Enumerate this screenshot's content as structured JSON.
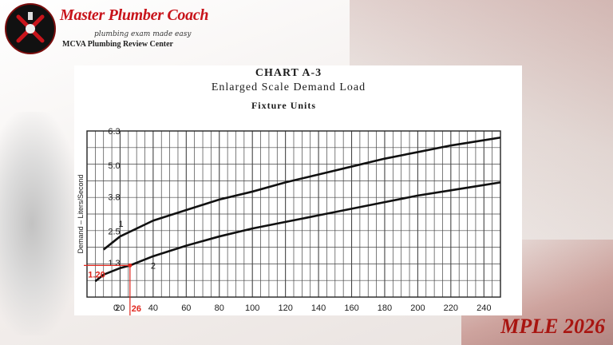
{
  "brand": {
    "title": "Master Plumber Coach",
    "tagline": "plumbing exam made easy",
    "subtitle": "MCVA Plumbing Review Center"
  },
  "footer": {
    "badge": "MPLE 2026"
  },
  "colors": {
    "brand_red": "#c8141b",
    "annotation_red": "#e0261d",
    "ink": "#1c1c1c"
  },
  "chart_data": {
    "type": "line",
    "title": "CHART A-3",
    "subtitle": "Enlarged Scale Demand Load",
    "xlabel": "Fixture Units",
    "ylabel": "Demand – Liters/Second",
    "xlim": [
      0,
      250
    ],
    "ylim": [
      0,
      6.3
    ],
    "x_ticks": [
      "0",
      "20",
      "40",
      "60",
      "80",
      "100",
      "120",
      "140",
      "160",
      "180",
      "200",
      "220",
      "240"
    ],
    "y_ticks": [
      "1.3",
      "2.5",
      "3.8",
      "5.0",
      "6.3"
    ],
    "grid": true,
    "series": [
      {
        "name": "1",
        "x": [
          10,
          20,
          40,
          60,
          80,
          100,
          120,
          140,
          160,
          180,
          200,
          220,
          240,
          250
        ],
        "values": [
          1.8,
          2.3,
          2.9,
          3.3,
          3.7,
          4.0,
          4.35,
          4.65,
          4.95,
          5.25,
          5.5,
          5.75,
          5.95,
          6.05
        ]
      },
      {
        "name": "2",
        "x": [
          5,
          10,
          20,
          26,
          40,
          60,
          80,
          100,
          120,
          140,
          160,
          180,
          200,
          220,
          240,
          250
        ],
        "values": [
          0.6,
          0.85,
          1.1,
          1.2,
          1.55,
          1.95,
          2.3,
          2.6,
          2.85,
          3.1,
          3.35,
          3.6,
          3.85,
          4.05,
          4.25,
          4.35
        ]
      }
    ],
    "annotations": [
      {
        "label_x": "26",
        "label_y": "1.20",
        "x": 26,
        "y": 1.2
      }
    ]
  }
}
